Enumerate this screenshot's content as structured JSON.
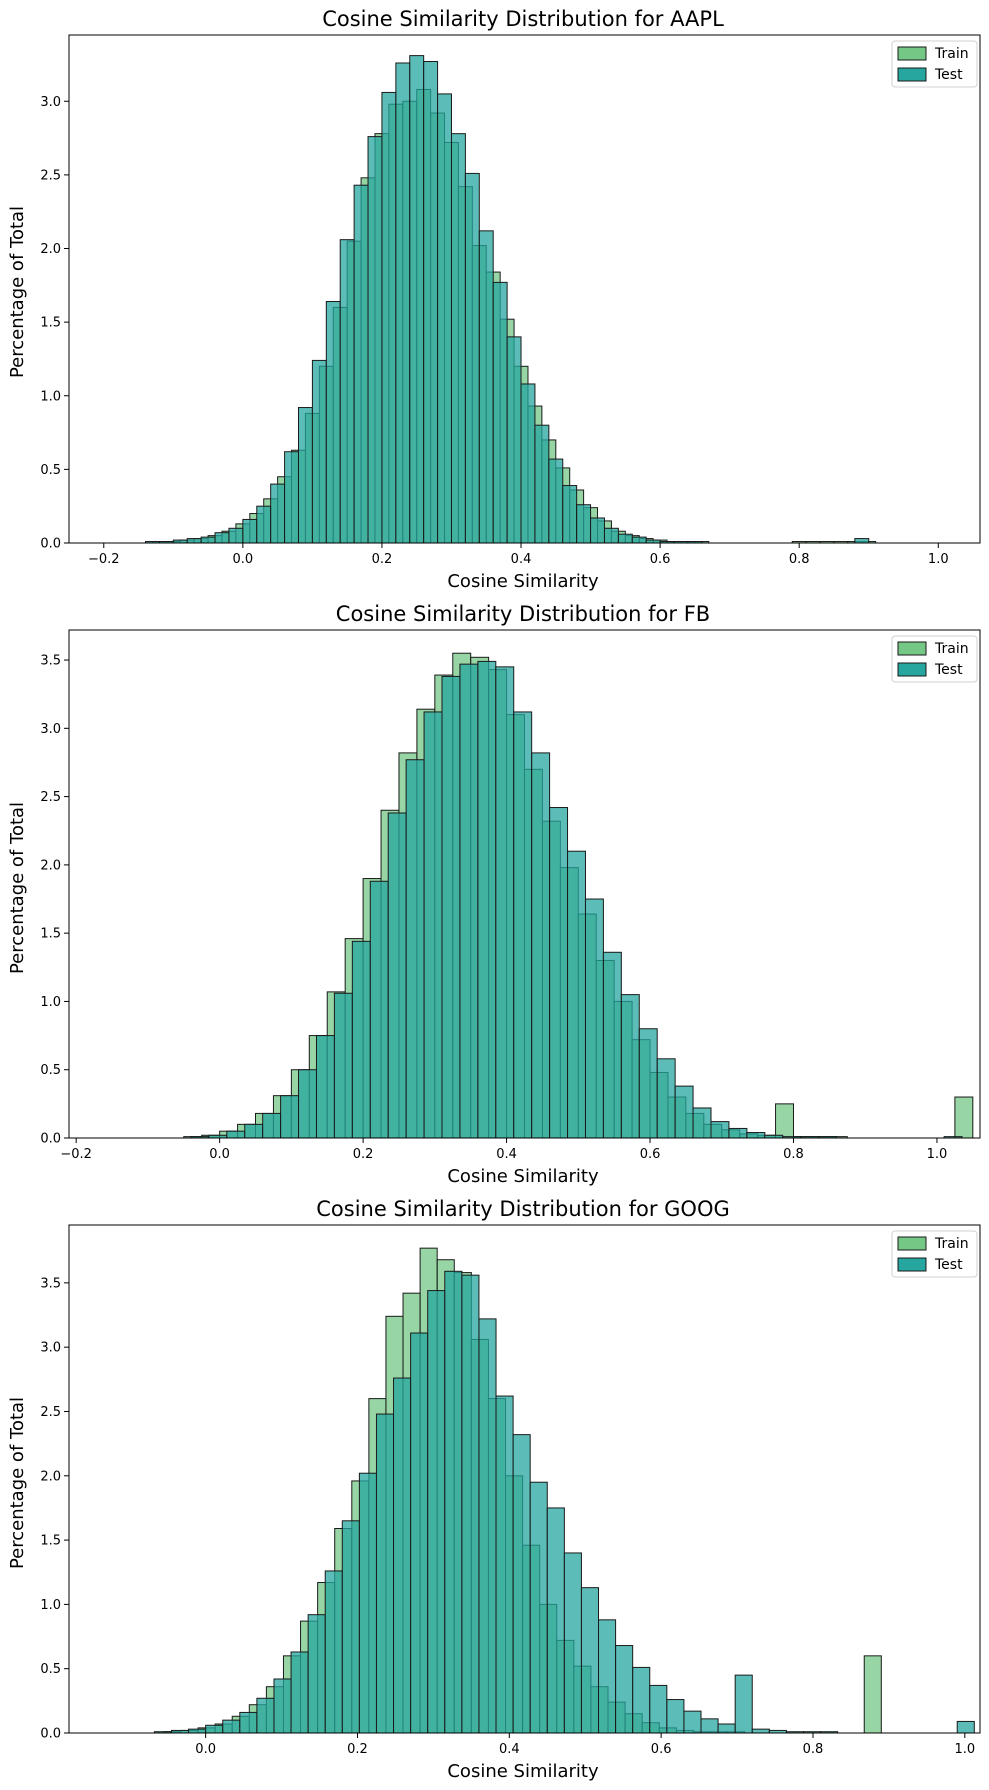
{
  "legend": {
    "train_label": "Train",
    "test_label": "Test"
  },
  "colors": {
    "train": "#74c785",
    "test": "#26a69f",
    "edge": "#1a1a1a"
  },
  "chart_data": [
    {
      "type": "bar",
      "title": "Cosine Similarity Distribution for AAPL",
      "xlabel": "Cosine Similarity",
      "ylabel": "Percentage of Total",
      "xlim": [
        -0.25,
        1.06
      ],
      "ylim": [
        0,
        3.45
      ],
      "xticks": [
        -0.2,
        0.0,
        0.2,
        0.4,
        0.6,
        0.8,
        1.0
      ],
      "yticks": [
        0.0,
        0.5,
        1.0,
        1.5,
        2.0,
        2.5,
        3.0
      ],
      "legend_position": "top-right",
      "grid": false,
      "series": [
        {
          "name": "Train",
          "bin_start": -0.25,
          "bin_width": 0.02,
          "values": [
            0,
            0,
            0,
            0,
            0,
            0,
            0.01,
            0.01,
            0.02,
            0.03,
            0.05,
            0.08,
            0.13,
            0.2,
            0.3,
            0.45,
            0.63,
            0.88,
            1.2,
            1.6,
            2.05,
            2.48,
            2.78,
            2.98,
            3.0,
            3.08,
            2.92,
            2.72,
            2.42,
            2.02,
            1.84,
            1.52,
            1.2,
            0.93,
            0.7,
            0.51,
            0.36,
            0.24,
            0.15,
            0.08,
            0.05,
            0.03,
            0.02,
            0.01,
            0.01,
            0.01,
            0,
            0,
            0,
            0,
            0,
            0,
            0.01,
            0.01,
            0.01,
            0.01,
            0.01,
            0.01
          ]
        },
        {
          "name": "Test",
          "bin_start": -0.24,
          "bin_width": 0.02,
          "values": [
            0,
            0,
            0,
            0,
            0,
            0.01,
            0.01,
            0.02,
            0.03,
            0.04,
            0.07,
            0.1,
            0.16,
            0.25,
            0.4,
            0.62,
            0.92,
            1.24,
            1.64,
            2.06,
            2.43,
            2.76,
            3.06,
            3.26,
            3.31,
            3.27,
            3.05,
            2.78,
            2.51,
            2.12,
            1.77,
            1.4,
            1.08,
            0.8,
            0.57,
            0.39,
            0.26,
            0.17,
            0.1,
            0.06,
            0.04,
            0.02,
            0.01,
            0.01,
            0.01,
            0,
            0,
            0,
            0,
            0,
            0,
            0,
            0,
            0,
            0,
            0,
            0.03
          ]
        }
      ]
    },
    {
      "type": "bar",
      "title": "Cosine Similarity Distribution for FB",
      "xlabel": "Cosine Similarity",
      "ylabel": "Percentage of Total",
      "xlim": [
        -0.21,
        1.06
      ],
      "ylim": [
        0,
        3.72
      ],
      "xticks": [
        -0.2,
        0.0,
        0.2,
        0.4,
        0.6,
        0.8,
        1.0
      ],
      "yticks": [
        0.0,
        0.5,
        1.0,
        1.5,
        2.0,
        2.5,
        3.0,
        3.5
      ],
      "legend_position": "top-right",
      "grid": false,
      "series": [
        {
          "name": "Train",
          "bin_start": -0.15,
          "bin_width": 0.025,
          "values": [
            0,
            0,
            0,
            0,
            0.01,
            0.02,
            0.05,
            0.1,
            0.18,
            0.31,
            0.5,
            0.75,
            1.07,
            1.46,
            1.9,
            2.4,
            2.82,
            3.14,
            3.39,
            3.55,
            3.52,
            3.43,
            3.1,
            2.7,
            2.32,
            1.98,
            1.64,
            1.3,
            1.0,
            0.72,
            0.48,
            0.3,
            0.18,
            0.1,
            0.06,
            0.03,
            0.02,
            0.25,
            0.01,
            0.01,
            0.01,
            0,
            0,
            0,
            0,
            0,
            0,
            0.3
          ]
        },
        {
          "name": "Test",
          "bin_start": -0.14,
          "bin_width": 0.025,
          "values": [
            0,
            0,
            0,
            0,
            0.01,
            0.02,
            0.05,
            0.1,
            0.18,
            0.31,
            0.5,
            0.75,
            1.06,
            1.44,
            1.88,
            2.38,
            2.77,
            3.12,
            3.38,
            3.47,
            3.49,
            3.45,
            3.12,
            2.82,
            2.42,
            2.1,
            1.75,
            1.36,
            1.05,
            0.8,
            0.58,
            0.38,
            0.22,
            0.12,
            0.07,
            0.04,
            0.02,
            0.01,
            0.01,
            0.01,
            0,
            0,
            0,
            0,
            0,
            0,
            0.01
          ]
        }
      ]
    },
    {
      "type": "bar",
      "title": "Cosine Similarity Distribution for GOOG",
      "xlabel": "Cosine Similarity",
      "ylabel": "Percentage of Total",
      "xlim": [
        -0.18,
        1.02
      ],
      "ylim": [
        0,
        3.95
      ],
      "xticks": [
        0.0,
        0.2,
        0.4,
        0.6,
        0.8,
        1.0
      ],
      "yticks": [
        0.0,
        0.5,
        1.0,
        1.5,
        2.0,
        2.5,
        3.0,
        3.5
      ],
      "legend_position": "top-right",
      "grid": false,
      "series": [
        {
          "name": "Train",
          "bin_start": -0.1,
          "bin_width": 0.0225,
          "values": [
            0,
            0,
            0.01,
            0.02,
            0.04,
            0.07,
            0.13,
            0.22,
            0.36,
            0.6,
            0.87,
            1.17,
            1.59,
            1.96,
            2.6,
            3.24,
            3.42,
            3.77,
            3.68,
            3.58,
            3.06,
            2.6,
            2.0,
            1.46,
            1.0,
            0.72,
            0.52,
            0.36,
            0.24,
            0.15,
            0.08,
            0.04,
            0.02,
            0.01,
            0.01,
            0.01,
            0,
            0,
            0,
            0,
            0,
            0,
            0,
            0.6
          ]
        },
        {
          "name": "Test",
          "bin_start": -0.09,
          "bin_width": 0.0225,
          "values": [
            0,
            0.01,
            0.02,
            0.03,
            0.06,
            0.1,
            0.16,
            0.27,
            0.42,
            0.63,
            0.92,
            1.26,
            1.65,
            2.02,
            2.48,
            2.76,
            3.11,
            3.44,
            3.59,
            3.56,
            3.22,
            2.62,
            2.32,
            1.95,
            1.75,
            1.4,
            1.13,
            0.88,
            0.68,
            0.51,
            0.37,
            0.26,
            0.17,
            0.11,
            0.07,
            0.45,
            0.03,
            0.02,
            0.01,
            0.01,
            0.01,
            0,
            0,
            0,
            0,
            0,
            0,
            0,
            0.09
          ]
        }
      ]
    }
  ]
}
